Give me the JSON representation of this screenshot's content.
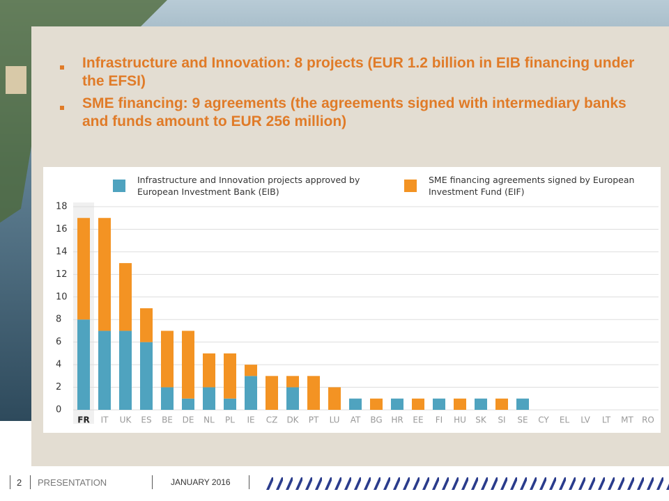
{
  "bullets": [
    "Infrastructure and Innovation: 8 projects (EUR 1.2 billion in EIB financing under the EFSI)",
    "SME financing: 9 agreements (the agreements signed with intermediary banks and funds amount to EUR 256 million)"
  ],
  "footer": {
    "page": "2",
    "section": "PRESENTATION",
    "date": "JANUARY 2016"
  },
  "chart_data": {
    "type": "stacked_bar",
    "categories": [
      "FR",
      "IT",
      "UK",
      "ES",
      "BE",
      "DE",
      "NL",
      "PL",
      "IE",
      "CZ",
      "DK",
      "PT",
      "LU",
      "AT",
      "BG",
      "HR",
      "EE",
      "FI",
      "HU",
      "SK",
      "SI",
      "SE",
      "CY",
      "EL",
      "LV",
      "LT",
      "MT",
      "RO"
    ],
    "series": [
      {
        "name": "Infrastructure and Innovation projects approved by European Investment Bank (EIB)",
        "color": "#4fa3bf",
        "values": [
          8,
          7,
          7,
          6,
          2,
          1,
          2,
          1,
          3,
          0,
          2,
          0,
          0,
          1,
          0,
          1,
          0,
          1,
          0,
          1,
          0,
          1,
          0,
          0,
          0,
          0,
          0,
          0
        ]
      },
      {
        "name": "SME financing agreements signed by European Investment Fund (EIF)",
        "color": "#f39323",
        "values": [
          9,
          10,
          6,
          3,
          5,
          6,
          3,
          4,
          1,
          3,
          1,
          3,
          2,
          0,
          1,
          0,
          1,
          0,
          1,
          0,
          1,
          0,
          0,
          0,
          0,
          0,
          0,
          0
        ]
      }
    ],
    "ylim": [
      0,
      18
    ],
    "yticks": [
      0,
      2,
      4,
      6,
      8,
      10,
      12,
      14,
      16,
      18
    ],
    "grid": true
  }
}
